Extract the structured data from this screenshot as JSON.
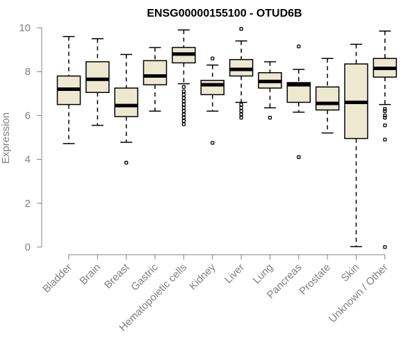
{
  "chart_data": {
    "type": "box",
    "title": "ENSG00000155100 - OTUD6B",
    "xlabel": "",
    "ylabel": "Expression",
    "ylim": [
      0,
      10
    ],
    "yticks": [
      0,
      2,
      4,
      6,
      8,
      10
    ],
    "grid": false,
    "box_fill": "#EDE8D0",
    "categories": [
      "Bladder",
      "Brain",
      "Breast",
      "Gastric",
      "Hematopoietic cells",
      "Kidney",
      "Liver",
      "Lung",
      "Pancreas",
      "Prostate",
      "Skin",
      "Unknown / Other"
    ],
    "boxes": [
      {
        "category": "Bladder",
        "whisker_low": 4.72,
        "q1": 6.5,
        "median": 7.2,
        "q3": 7.8,
        "whisker_high": 9.6,
        "outliers": []
      },
      {
        "category": "Brain",
        "whisker_low": 5.55,
        "q1": 7.05,
        "median": 7.65,
        "q3": 8.45,
        "whisker_high": 9.5,
        "outliers": []
      },
      {
        "category": "Breast",
        "whisker_low": 4.78,
        "q1": 5.95,
        "median": 6.45,
        "q3": 7.25,
        "whisker_high": 8.78,
        "outliers": [
          3.85
        ]
      },
      {
        "category": "Gastric",
        "whisker_low": 6.2,
        "q1": 7.4,
        "median": 7.8,
        "q3": 8.5,
        "whisker_high": 9.1,
        "outliers": []
      },
      {
        "category": "Hematopoietic cells",
        "whisker_low": 7.45,
        "q1": 8.4,
        "median": 8.8,
        "q3": 9.1,
        "whisker_high": 9.9,
        "outliers": [
          7.3,
          7.1,
          6.95,
          6.8,
          6.65,
          6.5,
          6.35,
          6.2,
          6.05,
          5.9,
          5.75,
          5.6
        ]
      },
      {
        "category": "Kidney",
        "whisker_low": 6.2,
        "q1": 6.95,
        "median": 7.4,
        "q3": 7.6,
        "whisker_high": 8.3,
        "outliers": [
          8.6,
          4.75
        ]
      },
      {
        "category": "Liver",
        "whisker_low": 6.6,
        "q1": 7.8,
        "median": 8.1,
        "q3": 8.55,
        "whisker_high": 9.4,
        "outliers": [
          9.95,
          6.5,
          6.35,
          6.2,
          6.05,
          5.9
        ]
      },
      {
        "category": "Lung",
        "whisker_low": 6.35,
        "q1": 7.25,
        "median": 7.55,
        "q3": 7.95,
        "whisker_high": 8.45,
        "outliers": [
          5.9
        ]
      },
      {
        "category": "Pancreas",
        "whisker_low": 6.15,
        "q1": 6.6,
        "median": 7.4,
        "q3": 7.5,
        "whisker_high": 8.1,
        "outliers": [
          9.15,
          4.1
        ]
      },
      {
        "category": "Prostate",
        "whisker_low": 5.2,
        "q1": 6.25,
        "median": 6.55,
        "q3": 7.3,
        "whisker_high": 8.6,
        "outliers": []
      },
      {
        "category": "Skin",
        "whisker_low": 0.02,
        "q1": 4.95,
        "median": 6.6,
        "q3": 8.35,
        "whisker_high": 9.25,
        "outliers": []
      },
      {
        "category": "Unknown / Other",
        "whisker_low": 6.5,
        "q1": 7.75,
        "median": 8.15,
        "q3": 8.6,
        "whisker_high": 9.85,
        "outliers": [
          6.3,
          6.2,
          6.0,
          5.9,
          5.55,
          4.9,
          0.0
        ]
      }
    ]
  }
}
